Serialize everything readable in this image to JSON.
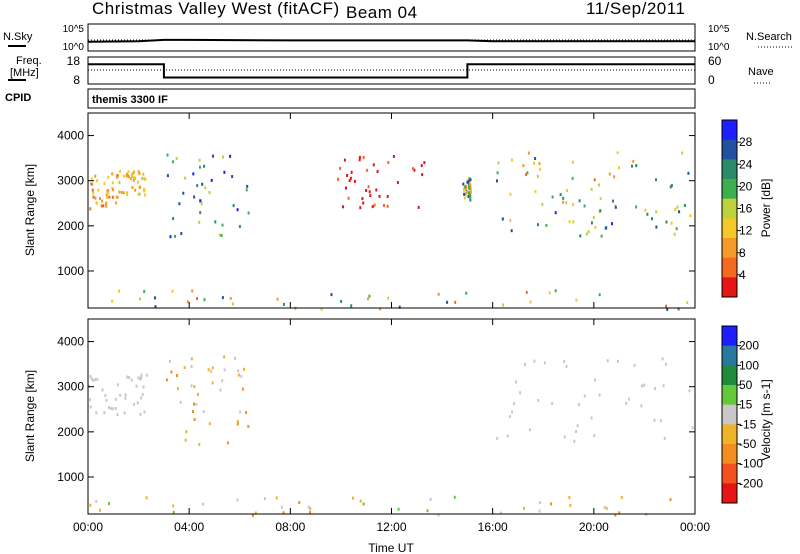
{
  "header": {
    "station": "Christmas Valley West (fitACF)",
    "beam": "Beam 04",
    "date": "11/Sep/2011"
  },
  "strip_labels": {
    "nsky": "N.Sky",
    "nsearch": "N.Search",
    "freq_line1": "Freq.",
    "freq_line2": "[MHz]",
    "nave": "Nave",
    "cpid": "CPID",
    "cpid_value": "themis 3300 IF",
    "nsky_ticks": [
      "10^5",
      "10^0"
    ],
    "nsearch_ticks": [
      "10^5",
      "10^0"
    ],
    "freq_ticks": [
      "18",
      "8"
    ],
    "nave_ticks": [
      "60",
      "0"
    ]
  },
  "colors": {
    "power_scale": [
      "#1e1eff",
      "#2050a0",
      "#2a8a6a",
      "#3cb050",
      "#bcd23c",
      "#f5c82a",
      "#f59a28",
      "#f56a1e",
      "#e61414"
    ],
    "velocity_scale": [
      "#1e1eff",
      "#2878a0",
      "#1e8c3c",
      "#64c83c",
      "#c8c8c8",
      "#f0b428",
      "#f58c1e",
      "#f5501e",
      "#e61414"
    ]
  },
  "chart_data": [
    {
      "type": "line",
      "name": "strip-nsky-nsearch",
      "x": [
        "00:00",
        "02:00",
        "03:00",
        "04:00",
        "08:00",
        "12:00",
        "15:00",
        "16:00",
        "20:00",
        "24:00"
      ],
      "series": [
        {
          "name": "N.Sky",
          "values": [
            1.5,
            1.6,
            1.9,
            1.9,
            1.8,
            1.8,
            1.8,
            1.6,
            1.6,
            1.6
          ]
        }
      ],
      "ylabel": "N.Sky",
      "ylabel_right": "N.Search",
      "y_ticks": [
        "10^5",
        "10^0"
      ]
    },
    {
      "type": "line",
      "name": "strip-freq-nave",
      "x": [
        "00:00",
        "03:00",
        "03:00",
        "15:00",
        "15:00",
        "24:00"
      ],
      "series": [
        {
          "name": "Freq.",
          "values": [
            15.5,
            15.5,
            10.2,
            10.2,
            15.5,
            15.5
          ]
        }
      ],
      "ylabel": "Freq. [MHz]",
      "ylabel_right": "Nave",
      "ylim": [
        8,
        18
      ],
      "y_ticks": [
        "18",
        "8"
      ],
      "y_ticks_right": [
        "60",
        "0"
      ]
    },
    {
      "type": "heatmap",
      "name": "power-panel",
      "xlabel": "",
      "ylabel": "Slant Range [km]",
      "colorbar_label": "Power [dB]",
      "colorbar_ticks": [
        "28",
        "24",
        "20",
        "16",
        "12",
        "8",
        "4"
      ],
      "x_range_hours": [
        0,
        24
      ],
      "ylim": [
        180,
        4500
      ],
      "y_ticks": [
        "1000",
        "2000",
        "3000",
        "4000"
      ],
      "features": [
        {
          "hours": [
            0.0,
            1.2
          ],
          "range_km": [
            2400,
            3200
          ],
          "power_db": [
            8,
            14
          ]
        },
        {
          "hours": [
            1.2,
            2.3
          ],
          "range_km": [
            2700,
            3300
          ],
          "power_db": [
            10,
            16
          ]
        },
        {
          "hours": [
            3.0,
            6.4
          ],
          "range_km": [
            1700,
            3700
          ],
          "power_db": [
            16,
            28
          ]
        },
        {
          "hours": [
            9.8,
            13.3
          ],
          "range_km": [
            2400,
            3600
          ],
          "power_db": [
            4,
            8
          ]
        },
        {
          "hours": [
            14.8,
            15.1
          ],
          "range_km": [
            2600,
            3100
          ],
          "power_db": [
            8,
            24
          ]
        },
        {
          "hours": [
            16.1,
            24.0
          ],
          "range_km": [
            2500,
            3700
          ],
          "power_db": [
            8,
            24
          ]
        },
        {
          "hours": [
            16.3,
            24.0
          ],
          "range_km": [
            1800,
            2600
          ],
          "power_db": [
            12,
            26
          ]
        },
        {
          "hours": [
            0.0,
            24.0
          ],
          "range_km": [
            180,
            600
          ],
          "power_db": [
            4,
            28
          ]
        }
      ]
    },
    {
      "type": "heatmap",
      "name": "velocity-panel",
      "xlabel": "Time UT",
      "ylabel": "Slant Range [km]",
      "colorbar_label": "Velocity [m s-1]",
      "colorbar_ticks": [
        "200",
        "100",
        "50",
        "15",
        "-15",
        "-50",
        "-100",
        "-200"
      ],
      "x_range_hours": [
        0,
        24
      ],
      "x_ticks": [
        "00:00",
        "04:00",
        "08:00",
        "12:00",
        "16:00",
        "20:00",
        "00:00"
      ],
      "ylim": [
        180,
        4500
      ],
      "y_ticks": [
        "1000",
        "2000",
        "3000",
        "4000"
      ],
      "features": [
        {
          "hours": [
            0.0,
            2.3
          ],
          "range_km": [
            2400,
            3300
          ],
          "velocity_ms": [
            -15,
            15
          ]
        },
        {
          "hours": [
            3.0,
            6.4
          ],
          "range_km": [
            1700,
            3700
          ],
          "velocity_ms": [
            -100,
            15
          ]
        },
        {
          "hours": [
            16.1,
            24.0
          ],
          "range_km": [
            1800,
            3700
          ],
          "velocity_ms": [
            -15,
            15
          ]
        },
        {
          "hours": [
            0.0,
            24.0
          ],
          "range_km": [
            180,
            600
          ],
          "velocity_ms": [
            -100,
            50
          ]
        }
      ]
    }
  ]
}
